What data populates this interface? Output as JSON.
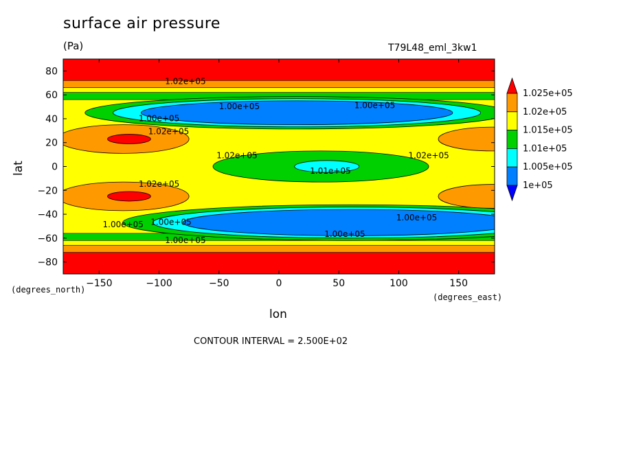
{
  "chart_data": {
    "type": "heatmap",
    "title": "surface air pressure",
    "units": "(Pa)",
    "run_label": "T79L48_eml_3kw1",
    "xlabel": "lon",
    "ylabel": "lat",
    "x_unit_note": "(degrees_east)",
    "y_unit_note": "(degrees_north)",
    "xlim": [
      -180,
      180
    ],
    "ylim": [
      -90,
      90
    ],
    "x_ticks": [
      -150,
      -100,
      -50,
      0,
      50,
      100,
      150
    ],
    "x_tick_labels": [
      "−150",
      "−100",
      "−50",
      "0",
      "50",
      "100",
      "150"
    ],
    "y_ticks": [
      -80,
      -60,
      -40,
      -20,
      0,
      20,
      40,
      60,
      80
    ],
    "y_tick_labels": [
      "−80",
      "−60",
      "−40",
      "−20",
      "0",
      "20",
      "40",
      "60",
      "80"
    ],
    "contour_interval_text": "CONTOUR INTERVAL = 2.500E+02",
    "colorbar": {
      "labels": [
        "1.025e+05",
        "1.02e+05",
        "1.015e+05",
        "1.01e+05",
        "1.005e+05",
        "1e+05"
      ],
      "colors": [
        "#ff0000",
        "#ff9900",
        "#ffff00",
        "#00d000",
        "#00ffff",
        "#0080ff",
        "#0000ff"
      ]
    },
    "bands": [
      {
        "lat_min": 72,
        "lat_max": 90,
        "value": 102600,
        "color": "#ff0000"
      },
      {
        "lat_min": 66,
        "lat_max": 72,
        "value": 102300,
        "color": "#ff9900"
      },
      {
        "lat_min": 62,
        "lat_max": 66,
        "value": 101800,
        "color": "#ffff00"
      },
      {
        "lat_min": 56,
        "lat_max": 62,
        "value": 101300,
        "color": "#00d000"
      },
      {
        "lat_min": -62,
        "lat_max": -56,
        "value": 101300,
        "color": "#00d000"
      },
      {
        "lat_min": -66,
        "lat_max": -62,
        "value": 101800,
        "color": "#ffff00"
      },
      {
        "lat_min": -72,
        "lat_max": -66,
        "value": 102300,
        "color": "#ff9900"
      },
      {
        "lat_min": -90,
        "lat_max": -72,
        "value": 102600,
        "color": "#ff0000"
      }
    ],
    "features": [
      {
        "kind": "low",
        "lon": 15,
        "lat": 45,
        "lon_half": 130,
        "lat_half": 10,
        "value": 100000,
        "color": "#0080ff"
      },
      {
        "kind": "low",
        "lon": 60,
        "lat": -47,
        "lon_half": 140,
        "lat_half": 11,
        "value": 100000,
        "color": "#0080ff"
      },
      {
        "kind": "high",
        "lon": -130,
        "lat": 23,
        "lon_half": 55,
        "lat_half": 12,
        "value": 102000,
        "color": "#ff9900"
      },
      {
        "kind": "high",
        "lon": -125,
        "lat": 23,
        "lon_half": 18,
        "lat_half": 4,
        "value": 102500,
        "color": "#ff0000"
      },
      {
        "kind": "high",
        "lon": -130,
        "lat": -25,
        "lon_half": 55,
        "lat_half": 12,
        "value": 102000,
        "color": "#ff9900"
      },
      {
        "kind": "high",
        "lon": -125,
        "lat": -25,
        "lon_half": 18,
        "lat_half": 4,
        "value": 102500,
        "color": "#ff0000"
      },
      {
        "kind": "high",
        "lon": 178,
        "lat": 23,
        "lon_half": 45,
        "lat_half": 10,
        "value": 102000,
        "color": "#ff9900"
      },
      {
        "kind": "high",
        "lon": 178,
        "lat": -25,
        "lon_half": 45,
        "lat_half": 10,
        "value": 102000,
        "color": "#ff9900"
      },
      {
        "kind": "low",
        "lon": 35,
        "lat": 0,
        "lon_half": 90,
        "lat_half": 13,
        "value": 101000,
        "color": "#00d000"
      },
      {
        "kind": "low",
        "lon": 40,
        "lat": 0,
        "lon_half": 27,
        "lat_half": 5,
        "value": 100500,
        "color": "#00ffff"
      }
    ],
    "contour_labels": [
      {
        "text": "1.02e+05",
        "lon": -78,
        "lat": 71
      },
      {
        "text": "1.00e+05",
        "lon": -33,
        "lat": 50
      },
      {
        "text": "1.00e+05",
        "lon": 80,
        "lat": 51
      },
      {
        "text": "1.00e+05",
        "lon": -100,
        "lat": 40
      },
      {
        "text": "1.02e+05",
        "lon": -92,
        "lat": 29
      },
      {
        "text": "1.02e+05",
        "lon": -35,
        "lat": 9
      },
      {
        "text": "1.01e+05",
        "lon": 43,
        "lat": -4
      },
      {
        "text": "1.02e+05",
        "lon": 125,
        "lat": 9
      },
      {
        "text": "1.02e+05",
        "lon": -100,
        "lat": -15
      },
      {
        "text": "1.00e+05",
        "lon": -130,
        "lat": -49
      },
      {
        "text": "1.00e+05",
        "lon": -90,
        "lat": -47
      },
      {
        "text": "1.00e+05",
        "lon": 115,
        "lat": -43
      },
      {
        "text": "1.00e+05",
        "lon": 55,
        "lat": -57
      },
      {
        "text": "1.00e+05",
        "lon": -78,
        "lat": -62
      }
    ]
  }
}
